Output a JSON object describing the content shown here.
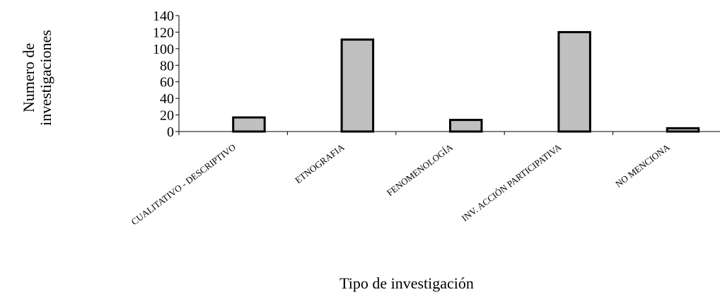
{
  "chart_data": {
    "type": "bar",
    "categories": [
      "CUALITATIVO - DESCRIPTIVO",
      "ETNOGRAFIA",
      "FENOMENOLOGÍA",
      "INV. ACCIÓN PARTICIPATIVA",
      "NO MENCIONA"
    ],
    "values": [
      17,
      111,
      14,
      120,
      4
    ],
    "title": "",
    "xlabel": "Tipo de investigación",
    "ylabel_lines": [
      "Numero de",
      "investigaciones"
    ],
    "ylim": [
      0,
      140
    ],
    "yticks": [
      0,
      20,
      40,
      60,
      80,
      100,
      120,
      140
    ],
    "grid": false,
    "legend": "none",
    "bar_color": "#c0c0c0",
    "bar_outline_color": "#000000"
  }
}
